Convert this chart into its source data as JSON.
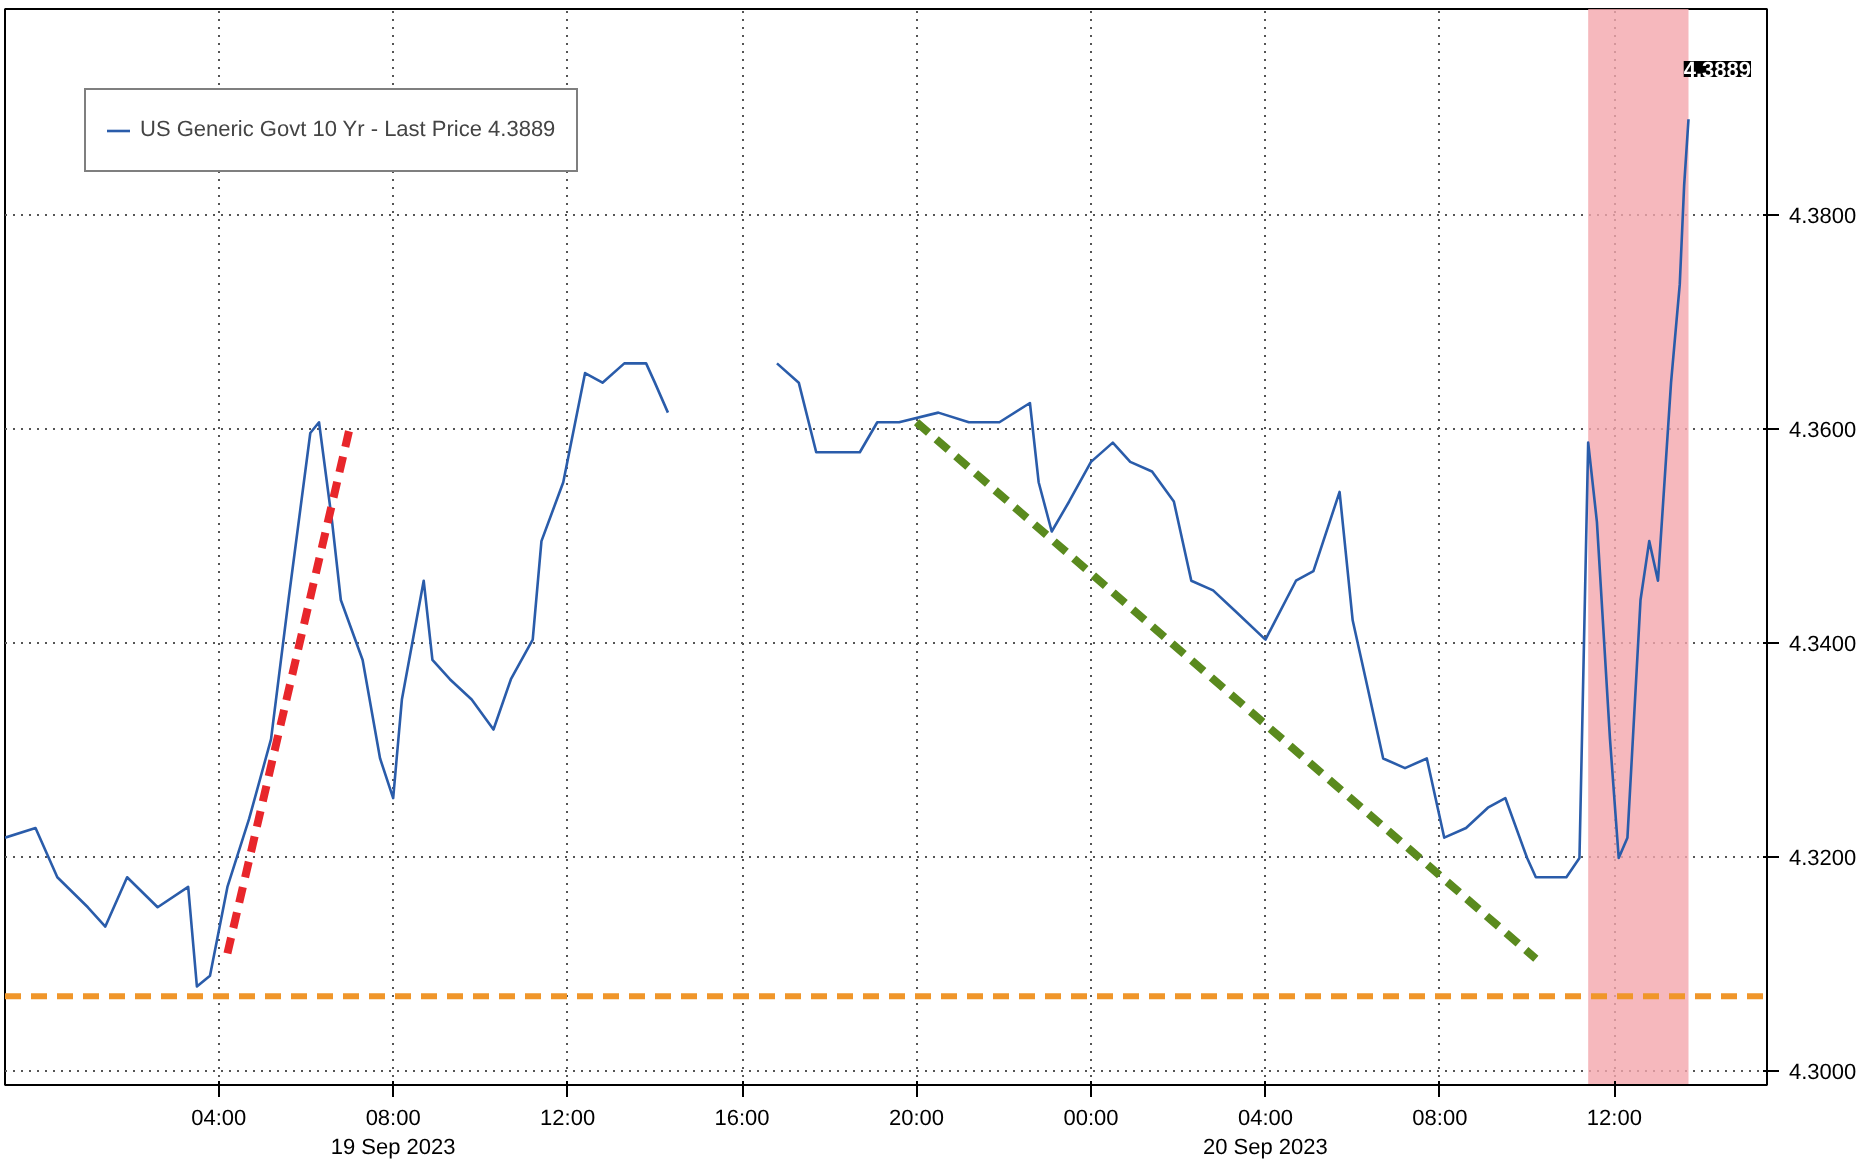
{
  "chart_data": {
    "type": "line",
    "x": [
      "2023-09-18T23:06",
      "2023-09-18T23:48",
      "2023-09-19T00:18",
      "2023-09-19T01:00",
      "2023-09-19T01:24",
      "2023-09-19T01:54",
      "2023-09-19T02:36",
      "2023-09-19T03:18",
      "2023-09-19T03:30",
      "2023-09-19T03:48",
      "2023-09-19T04:12",
      "2023-09-19T04:42",
      "2023-09-19T05:12",
      "2023-09-19T05:36",
      "2023-09-19T06:06",
      "2023-09-19T06:18",
      "2023-09-19T06:36",
      "2023-09-19T06:48",
      "2023-09-19T07:18",
      "2023-09-19T07:42",
      "2023-09-19T08:00",
      "2023-09-19T08:12",
      "2023-09-19T08:42",
      "2023-09-19T08:54",
      "2023-09-19T09:18",
      "2023-09-19T09:48",
      "2023-09-19T10:18",
      "2023-09-19T10:42",
      "2023-09-19T11:12",
      "2023-09-19T11:24",
      "2023-09-19T11:54",
      "2023-09-19T12:24",
      "2023-09-19T12:48",
      "2023-09-19T13:18",
      "2023-09-19T13:48",
      "2023-09-19T14:00",
      "2023-09-19T14:18",
      "2023-09-19T15:30",
      "2023-09-19T16:48",
      "2023-09-19T17:18",
      "2023-09-19T17:42",
      "2023-09-19T18:12",
      "2023-09-19T18:42",
      "2023-09-19T19:06",
      "2023-09-19T19:36",
      "2023-09-19T20:30",
      "2023-09-19T21:12",
      "2023-09-19T21:54",
      "2023-09-19T22:36",
      "2023-09-19T22:48",
      "2023-09-19T23:06",
      "2023-09-19T23:30",
      "2023-09-20T00:00",
      "2023-09-20T00:30",
      "2023-09-20T00:54",
      "2023-09-20T01:24",
      "2023-09-20T01:54",
      "2023-09-20T02:18",
      "2023-09-20T02:48",
      "2023-09-20T03:18",
      "2023-09-20T04:00",
      "2023-09-20T04:42",
      "2023-09-20T05:06",
      "2023-09-20T05:42",
      "2023-09-20T06:00",
      "2023-09-20T06:18",
      "2023-09-20T06:42",
      "2023-09-20T07:12",
      "2023-09-20T07:42",
      "2023-09-20T08:06",
      "2023-09-20T08:36",
      "2023-09-20T09:06",
      "2023-09-20T09:30",
      "2023-09-20T10:00",
      "2023-09-20T10:12",
      "2023-09-20T10:54",
      "2023-09-20T11:12",
      "2023-09-20T11:24",
      "2023-09-20T11:36",
      "2023-09-20T11:54",
      "2023-09-20T12:06",
      "2023-09-20T12:18",
      "2023-09-20T12:36",
      "2023-09-20T12:48",
      "2023-09-20T13:00",
      "2023-09-20T13:18",
      "2023-09-20T13:30",
      "2023-09-20T13:36",
      "2023-09-20T13:42"
    ],
    "series": [
      {
        "name": "US Generic Govt 10 Yr - Last Price 4.3889",
        "color": "#2a5caa",
        "values": [
          4.3218,
          4.3227,
          4.3181,
          4.3153,
          4.3135,
          4.3181,
          4.3153,
          4.3172,
          4.3079,
          4.3089,
          4.3172,
          4.3236,
          4.331,
          4.344,
          4.3596,
          4.3606,
          4.3513,
          4.344,
          4.3384,
          4.3292,
          4.3255,
          4.3347,
          4.3458,
          4.3384,
          4.3366,
          4.3347,
          4.3319,
          4.3366,
          4.3403,
          4.3495,
          4.355,
          4.3652,
          4.3643,
          4.3661,
          4.3661,
          4.3643,
          4.3615,
          null,
          4.3661,
          4.3643,
          4.3578,
          4.3578,
          4.3578,
          4.3606,
          4.3606,
          4.3615,
          4.3606,
          4.3606,
          4.3624,
          4.355,
          4.3504,
          4.3532,
          4.3569,
          4.3587,
          4.3569,
          4.356,
          4.3532,
          4.3458,
          4.3449,
          4.343,
          4.3403,
          4.3458,
          4.3467,
          4.3541,
          4.3421,
          4.3366,
          4.3292,
          4.3283,
          4.3292,
          4.3218,
          4.3227,
          4.3246,
          4.3255,
          4.3199,
          4.3181,
          4.3181,
          4.3199,
          4.3587,
          4.3513,
          4.331,
          4.3199,
          4.3218,
          4.344,
          4.3495,
          4.3458,
          4.3643,
          4.3735,
          4.3827,
          4.3889
        ]
      },
      {
        "color": "#e8262b",
        "line_style": "dashed",
        "x": [
          "2023-09-19T04:12",
          "2023-09-19T07:00"
        ],
        "values": [
          4.311,
          4.36
        ]
      },
      {
        "color": "#5a8a1e",
        "line_style": "dashed",
        "x": [
          "2023-09-19T20:00",
          "2023-09-20T10:12"
        ],
        "values": [
          4.3606,
          4.3105
        ]
      }
    ],
    "xlim": [
      "2023-09-18T23:06",
      "2023-09-20T15:30"
    ],
    "xticks": [
      {
        "value": "2023-09-19T04:00",
        "label": "04:00"
      },
      {
        "value": "2023-09-19T08:00",
        "label": "08:00\n19 Sep 2023"
      },
      {
        "value": "2023-09-19T12:00",
        "label": "12:00"
      },
      {
        "value": "2023-09-19T16:00",
        "label": "16:00"
      },
      {
        "value": "2023-09-19T20:00",
        "label": "20:00"
      },
      {
        "value": "2023-09-20T00:00",
        "label": "00:00"
      },
      {
        "value": "2023-09-20T04:00",
        "label": "04:00\n20 Sep 2023"
      },
      {
        "value": "2023-09-20T08:00",
        "label": "08:00"
      },
      {
        "value": "2023-09-20T12:00",
        "label": "12:00"
      }
    ],
    "ylim": [
      4.2987,
      4.3992
    ],
    "yticks": [
      {
        "value": 4.3,
        "label": "4.3000"
      },
      {
        "value": 4.32,
        "label": "4.3200"
      },
      {
        "value": 4.34,
        "label": "4.3400"
      },
      {
        "value": 4.36,
        "label": "4.3600"
      },
      {
        "value": 4.38,
        "label": "4.3800"
      }
    ],
    "ref_lines": [
      {
        "axis": "y",
        "value": 4.307,
        "color": "#f0962a",
        "line_style": "dashed"
      }
    ],
    "bands": [
      {
        "axis": "x",
        "from": "2023-09-20T11:24",
        "to": "2023-09-20T13:42",
        "color": "#f4a6ad"
      }
    ],
    "annotations": [
      "4.3889"
    ],
    "grid": true,
    "legend": "top left"
  }
}
